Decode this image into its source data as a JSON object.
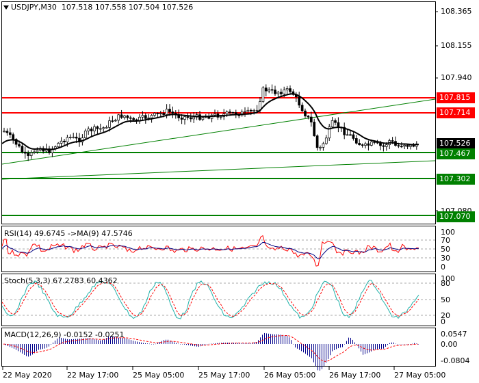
{
  "window": {
    "symbol_label": "USDJPY,M30",
    "ohlc": "107.518 107.558 107.504 107.526"
  },
  "price_axis": {
    "ticks": [
      "108.365",
      "108.155",
      "107.940",
      "107.080"
    ],
    "current_price": "107.526"
  },
  "levels": [
    {
      "label": "107.815",
      "color": "#ff0000"
    },
    {
      "label": "107.714",
      "color": "#ff0000"
    },
    {
      "label": "107.467",
      "color": "#008000"
    },
    {
      "label": "107.302",
      "color": "#008000"
    },
    {
      "label": "107.070",
      "color": "#008000"
    }
  ],
  "rsi": {
    "label": "RSI(14) 49.6745   ->MA(9) 47.5746",
    "ticks": [
      "100",
      "70",
      "50",
      "30",
      "0"
    ]
  },
  "stoch": {
    "label": "Stoch(5,3,3) 67.2783 60.4362",
    "ticks": [
      "100",
      "80",
      "50",
      "20",
      "0"
    ]
  },
  "macd": {
    "label": "MACD(12,26,9) -0.0152 -0.0251",
    "ticks": [
      "0.0547",
      "0.00",
      "-0.0804"
    ]
  },
  "time_axis": {
    "labels": [
      "22 May 2020",
      "22 May 17:00",
      "25 May 05:00",
      "25 May 17:00",
      "26 May 05:00",
      "26 May 17:00",
      "27 May 05:00"
    ]
  },
  "colors": {
    "support": "#008000",
    "resistance": "#ff0000",
    "rsi_line": "#ff0000",
    "rsi_ma": "#000080",
    "stoch_main": "#20b2aa",
    "stoch_signal": "#ff0000",
    "macd_hist": "#00008b",
    "macd_signal": "#ff0000"
  }
}
